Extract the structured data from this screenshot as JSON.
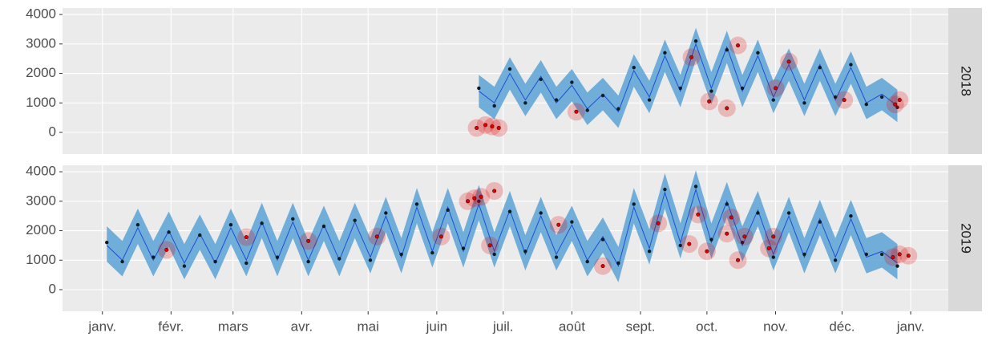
{
  "chart_data": {
    "type": "line",
    "xlim": [
      -17,
      383
    ],
    "xticks": [
      {
        "value": 1,
        "label": "janv."
      },
      {
        "value": 32,
        "label": "févr."
      },
      {
        "value": 60,
        "label": "mars"
      },
      {
        "value": 91,
        "label": "avr."
      },
      {
        "value": 121,
        "label": "mai"
      },
      {
        "value": 152,
        "label": "juin"
      },
      {
        "value": 182,
        "label": "juil."
      },
      {
        "value": 213,
        "label": "août"
      },
      {
        "value": 244,
        "label": "sept."
      },
      {
        "value": 274,
        "label": "oct."
      },
      {
        "value": 305,
        "label": "nov."
      },
      {
        "value": 335,
        "label": "déc."
      },
      {
        "value": 366,
        "label": "janv."
      }
    ],
    "ylim": [
      -735,
      4220
    ],
    "yticks": [
      0,
      1000,
      2000,
      3000,
      4000
    ],
    "grid": true,
    "band_color": "#5ba3d6",
    "line_color": "#1a4fd6",
    "point_color": "#0b1a22",
    "anomaly_color": "#e00000",
    "facets": [
      {
        "label": "2018",
        "x": [
          171,
          178,
          185,
          192,
          199,
          206,
          213,
          220,
          227,
          234,
          241,
          248,
          255,
          262,
          269,
          276,
          283,
          290,
          297,
          304,
          311,
          318,
          325,
          332,
          339,
          346,
          353,
          360
        ],
        "fit": [
          1400,
          1000,
          2000,
          1100,
          1900,
          1000,
          1600,
          800,
          1300,
          700,
          2100,
          1200,
          2600,
          1400,
          3000,
          1500,
          2900,
          1400,
          2600,
          1200,
          2300,
          1100,
          2300,
          1100,
          2200,
          1000,
          1300,
          900
        ],
        "lower": [
          850,
          450,
          1450,
          550,
          1350,
          450,
          1050,
          250,
          750,
          150,
          1550,
          650,
          2050,
          850,
          2450,
          950,
          2350,
          850,
          2050,
          650,
          1750,
          550,
          1750,
          550,
          1650,
          450,
          750,
          350
        ],
        "upper": [
          1950,
          1550,
          2550,
          1650,
          2450,
          1550,
          2150,
          1350,
          1850,
          1250,
          2650,
          1750,
          3150,
          1950,
          3550,
          2050,
          3450,
          1950,
          3150,
          1750,
          2850,
          1650,
          2850,
          1650,
          2750,
          1550,
          1850,
          1450
        ],
        "observed": [
          1500,
          900,
          2150,
          1000,
          1800,
          1100,
          1700,
          750,
          1250,
          800,
          2200,
          1100,
          2700,
          1500,
          3100,
          1400,
          2800,
          1500,
          2700,
          1100,
          2400,
          1000,
          2200,
          1200,
          2300,
          950,
          1200,
          850
        ],
        "anomalies": {
          "x": [
            170,
            174,
            177,
            180,
            215,
            267,
            275,
            283,
            288,
            305,
            311,
            336,
            359,
            361
          ],
          "y": [
            150,
            250,
            200,
            150,
            700,
            2550,
            1050,
            820,
            2950,
            1500,
            2400,
            1100,
            950,
            1100
          ]
        }
      },
      {
        "label": "2019",
        "x": [
          3,
          10,
          17,
          24,
          31,
          38,
          45,
          52,
          59,
          66,
          73,
          80,
          87,
          94,
          101,
          108,
          115,
          122,
          129,
          136,
          143,
          150,
          157,
          164,
          171,
          178,
          185,
          192,
          199,
          206,
          213,
          220,
          227,
          234,
          241,
          248,
          255,
          262,
          269,
          276,
          283,
          290,
          297,
          304,
          311,
          318,
          325,
          332,
          339,
          346,
          353,
          360
        ],
        "fit": [
          1500,
          1000,
          2100,
          1000,
          2000,
          900,
          1900,
          900,
          2100,
          1000,
          2300,
          1000,
          2300,
          1000,
          2200,
          1000,
          2300,
          1100,
          2500,
          1100,
          2800,
          1300,
          2800,
          1300,
          2900,
          1300,
          2700,
          1200,
          2500,
          1200,
          2200,
          1000,
          1800,
          800,
          2800,
          1400,
          3300,
          1600,
          3400,
          1600,
          3000,
          1500,
          2700,
          1200,
          2500,
          1100,
          2400,
          1100,
          2400,
          1100,
          1300,
          900
        ],
        "lower": [
          950,
          450,
          1550,
          450,
          1450,
          350,
          1350,
          350,
          1550,
          450,
          1750,
          450,
          1750,
          450,
          1650,
          450,
          1750,
          550,
          1950,
          550,
          2250,
          750,
          2250,
          750,
          2350,
          750,
          2150,
          650,
          1950,
          650,
          1650,
          450,
          1250,
          250,
          2250,
          850,
          2750,
          1050,
          2850,
          1050,
          2450,
          950,
          2150,
          650,
          1950,
          550,
          1850,
          550,
          1850,
          550,
          750,
          350
        ],
        "upper": [
          2150,
          1650,
          2750,
          1650,
          2650,
          1550,
          2550,
          1550,
          2750,
          1650,
          2950,
          1650,
          2950,
          1650,
          2850,
          1650,
          2950,
          1750,
          3150,
          1750,
          3450,
          1950,
          3450,
          1950,
          3550,
          1950,
          3350,
          1850,
          3150,
          1850,
          2850,
          1650,
          2450,
          1450,
          3450,
          2050,
          3950,
          2250,
          4050,
          2250,
          3650,
          2150,
          3350,
          1850,
          3150,
          1750,
          3050,
          1750,
          3050,
          1750,
          1950,
          1550
        ],
        "observed": [
          1600,
          950,
          2200,
          1100,
          1950,
          800,
          1850,
          950,
          2200,
          900,
          2250,
          1100,
          2400,
          950,
          2150,
          1050,
          2350,
          1000,
          2600,
          1200,
          2900,
          1250,
          2700,
          1400,
          3000,
          1200,
          2650,
          1300,
          2600,
          1100,
          2300,
          950,
          1700,
          900,
          2900,
          1300,
          3400,
          1500,
          3500,
          1700,
          2900,
          1600,
          2600,
          1100,
          2600,
          1200,
          2300,
          1000,
          2500,
          1200,
          1200,
          800
        ],
        "anomalies": {
          "x": [
            30,
            66,
            94,
            125,
            154,
            166,
            169,
            172,
            176,
            178,
            207,
            227,
            252,
            266,
            270,
            274,
            283,
            285,
            288,
            291,
            302,
            304,
            358,
            361,
            365
          ],
          "y": [
            1350,
            1780,
            1650,
            1800,
            1800,
            3000,
            3100,
            3150,
            1500,
            3350,
            2200,
            800,
            2250,
            1550,
            2550,
            1300,
            1900,
            2450,
            1000,
            1800,
            1400,
            1800,
            1100,
            1200,
            1150
          ]
        }
      }
    ]
  }
}
